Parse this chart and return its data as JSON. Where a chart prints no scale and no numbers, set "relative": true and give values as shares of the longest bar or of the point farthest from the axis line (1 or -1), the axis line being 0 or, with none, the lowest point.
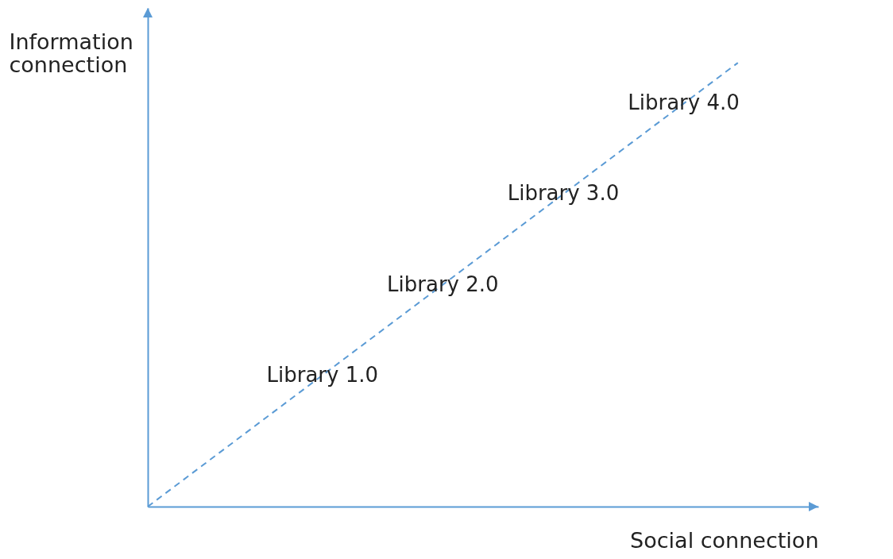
{
  "chart_data": {
    "type": "line",
    "relative": true,
    "xlabel": "Social connection",
    "ylabel": "Information connection",
    "categories": [
      null,
      null
    ],
    "series": [
      {
        "color": "#5b9bd5",
        "values": [
          0,
          1
        ]
      }
    ],
    "line_style": "dashed",
    "annotations": [
      "Library 1.0",
      "Library 2.0",
      "Library 3.0",
      "Library 4.0"
    ]
  }
}
